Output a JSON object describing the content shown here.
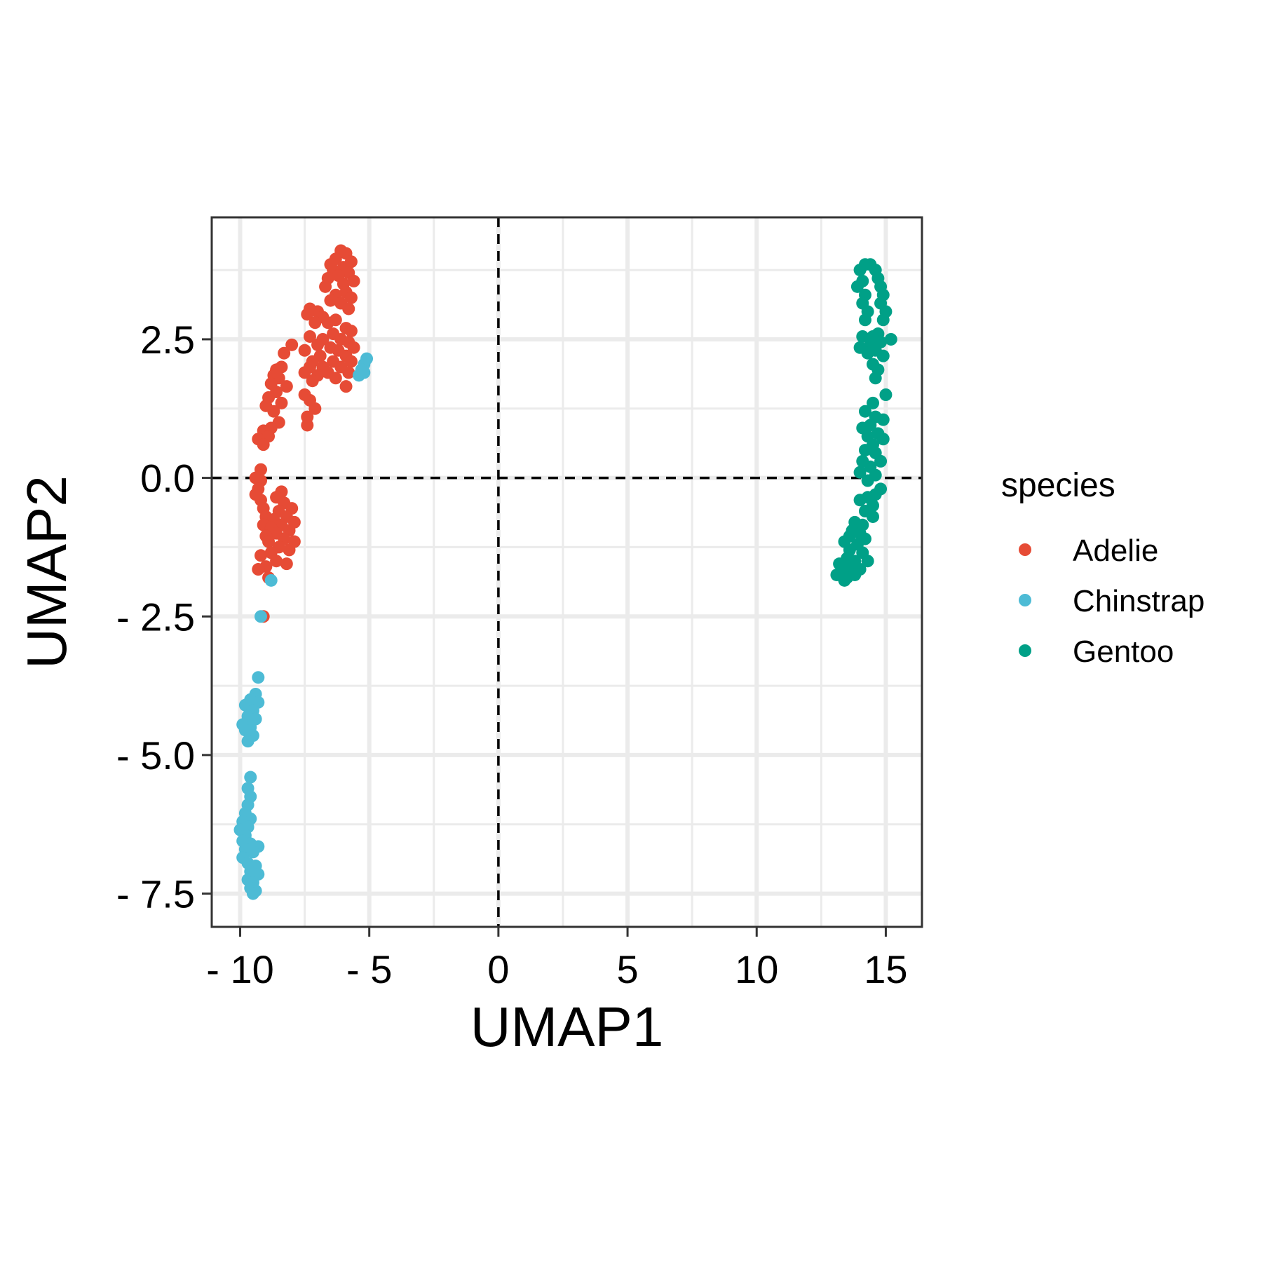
{
  "chart_data": {
    "type": "scatter",
    "xlabel": "UMAP1",
    "ylabel": "UMAP2",
    "xlim": [
      -11.1,
      16.4
    ],
    "ylim": [
      -8.1,
      4.7
    ],
    "x_ticks": [
      -10,
      -5,
      0,
      5,
      10,
      15
    ],
    "y_ticks": [
      -7.5,
      -5.0,
      -2.5,
      0.0,
      2.5
    ],
    "x_tick_labels": [
      "- 10",
      "- 5",
      "0",
      "5",
      "10",
      "15"
    ],
    "y_tick_labels": [
      "- 7.5",
      "- 5.0",
      "- 2.5",
      "0.0",
      "2.5"
    ],
    "grid": true,
    "reference_lines": {
      "x": 0,
      "y": 0,
      "style": "dashed"
    },
    "legend": {
      "title": "species",
      "position": "right"
    },
    "series": [
      {
        "name": "Adelie",
        "color": "#E64B35",
        "points": [
          [
            -6.1,
            4.1
          ],
          [
            -5.9,
            4.05
          ],
          [
            -6.3,
            3.95
          ],
          [
            -5.7,
            3.9
          ],
          [
            -6.5,
            3.85
          ],
          [
            -6.0,
            3.8
          ],
          [
            -6.4,
            3.75
          ],
          [
            -5.8,
            3.7
          ],
          [
            -6.2,
            3.65
          ],
          [
            -6.6,
            3.6
          ],
          [
            -5.6,
            3.55
          ],
          [
            -6.0,
            3.5
          ],
          [
            -6.7,
            3.45
          ],
          [
            -5.9,
            3.35
          ],
          [
            -6.3,
            3.3
          ],
          [
            -5.7,
            3.25
          ],
          [
            -6.5,
            3.2
          ],
          [
            -6.1,
            3.15
          ],
          [
            -5.8,
            3.05
          ],
          [
            -7.3,
            3.05
          ],
          [
            -7.0,
            3.0
          ],
          [
            -7.4,
            2.95
          ],
          [
            -6.8,
            2.9
          ],
          [
            -6.3,
            2.85
          ],
          [
            -7.1,
            2.8
          ],
          [
            -6.6,
            2.8
          ],
          [
            -5.9,
            2.7
          ],
          [
            -6.4,
            2.6
          ],
          [
            -5.7,
            2.65
          ],
          [
            -7.3,
            2.55
          ],
          [
            -6.8,
            2.5
          ],
          [
            -6.1,
            2.5
          ],
          [
            -5.8,
            2.45
          ],
          [
            -7.0,
            2.4
          ],
          [
            -8.0,
            2.4
          ],
          [
            -6.5,
            2.35
          ],
          [
            -5.6,
            2.35
          ],
          [
            -7.5,
            2.3
          ],
          [
            -6.2,
            2.3
          ],
          [
            -8.3,
            2.25
          ],
          [
            -6.9,
            2.2
          ],
          [
            -5.9,
            2.2
          ],
          [
            -7.2,
            2.1
          ],
          [
            -6.4,
            2.1
          ],
          [
            -5.7,
            2.1
          ],
          [
            -8.4,
            2.0
          ],
          [
            -7.3,
            2.0
          ],
          [
            -6.8,
            2.0
          ],
          [
            -6.1,
            2.0
          ],
          [
            -8.6,
            1.95
          ],
          [
            -7.5,
            1.9
          ],
          [
            -6.6,
            1.9
          ],
          [
            -5.8,
            1.9
          ],
          [
            -8.7,
            1.85
          ],
          [
            -7.0,
            1.85
          ],
          [
            -8.5,
            1.8
          ],
          [
            -6.3,
            1.8
          ],
          [
            -8.8,
            1.7
          ],
          [
            -7.2,
            1.75
          ],
          [
            -8.2,
            1.65
          ],
          [
            -5.9,
            1.65
          ],
          [
            -8.6,
            1.55
          ],
          [
            -8.9,
            1.45
          ],
          [
            -7.5,
            1.5
          ],
          [
            -7.3,
            1.4
          ],
          [
            -8.4,
            1.35
          ],
          [
            -9.0,
            1.3
          ],
          [
            -7.1,
            1.25
          ],
          [
            -8.7,
            1.2
          ],
          [
            -7.4,
            1.1
          ],
          [
            -8.5,
            1.0
          ],
          [
            -7.4,
            0.95
          ],
          [
            -8.8,
            0.9
          ],
          [
            -9.1,
            0.85
          ],
          [
            -8.9,
            0.75
          ],
          [
            -9.3,
            0.7
          ],
          [
            -9.1,
            0.6
          ],
          [
            -9.2,
            0.15
          ],
          [
            -9.4,
            0.0
          ],
          [
            -9.2,
            -0.05
          ],
          [
            -9.3,
            -0.2
          ],
          [
            -9.4,
            -0.3
          ],
          [
            -8.4,
            -0.25
          ],
          [
            -8.6,
            -0.35
          ],
          [
            -9.2,
            -0.4
          ],
          [
            -8.3,
            -0.45
          ],
          [
            -9.1,
            -0.55
          ],
          [
            -8.0,
            -0.55
          ],
          [
            -8.5,
            -0.6
          ],
          [
            -9.0,
            -0.7
          ],
          [
            -8.2,
            -0.7
          ],
          [
            -8.7,
            -0.75
          ],
          [
            -7.9,
            -0.8
          ],
          [
            -8.4,
            -0.85
          ],
          [
            -9.1,
            -0.85
          ],
          [
            -8.8,
            -0.9
          ],
          [
            -8.1,
            -0.95
          ],
          [
            -8.6,
            -1.0
          ],
          [
            -9.0,
            -1.05
          ],
          [
            -8.3,
            -1.1
          ],
          [
            -7.9,
            -1.15
          ],
          [
            -8.9,
            -1.15
          ],
          [
            -8.5,
            -1.25
          ],
          [
            -8.1,
            -1.3
          ],
          [
            -8.8,
            -1.35
          ],
          [
            -9.2,
            -1.4
          ],
          [
            -8.6,
            -1.5
          ],
          [
            -8.2,
            -1.55
          ],
          [
            -9.0,
            -1.6
          ],
          [
            -9.3,
            -1.65
          ],
          [
            -8.9,
            -1.8
          ],
          [
            -9.1,
            -2.5
          ]
        ]
      },
      {
        "name": "Chinstrap",
        "color": "#4DBBD5",
        "points": [
          [
            -5.1,
            2.15
          ],
          [
            -5.2,
            2.05
          ],
          [
            -5.3,
            1.95
          ],
          [
            -5.2,
            1.9
          ],
          [
            -5.4,
            1.85
          ],
          [
            -8.8,
            -1.85
          ],
          [
            -9.2,
            -2.5
          ],
          [
            -9.3,
            -3.6
          ],
          [
            -9.4,
            -3.9
          ],
          [
            -9.6,
            -4.0
          ],
          [
            -9.3,
            -4.05
          ],
          [
            -9.8,
            -4.1
          ],
          [
            -9.5,
            -4.2
          ],
          [
            -9.7,
            -4.3
          ],
          [
            -9.4,
            -4.35
          ],
          [
            -9.9,
            -4.45
          ],
          [
            -9.6,
            -4.5
          ],
          [
            -9.8,
            -4.55
          ],
          [
            -9.5,
            -4.65
          ],
          [
            -9.7,
            -4.75
          ],
          [
            -9.6,
            -5.4
          ],
          [
            -9.7,
            -5.6
          ],
          [
            -9.6,
            -5.75
          ],
          [
            -9.7,
            -5.9
          ],
          [
            -9.8,
            -6.05
          ],
          [
            -9.6,
            -6.15
          ],
          [
            -9.9,
            -6.2
          ],
          [
            -9.7,
            -6.3
          ],
          [
            -10.0,
            -6.35
          ],
          [
            -9.8,
            -6.45
          ],
          [
            -9.9,
            -6.55
          ],
          [
            -9.6,
            -6.6
          ],
          [
            -9.3,
            -6.65
          ],
          [
            -9.8,
            -6.7
          ],
          [
            -9.5,
            -6.75
          ],
          [
            -9.9,
            -6.85
          ],
          [
            -9.7,
            -6.95
          ],
          [
            -9.4,
            -7.0
          ],
          [
            -9.6,
            -7.1
          ],
          [
            -9.3,
            -7.15
          ],
          [
            -9.7,
            -7.25
          ],
          [
            -9.5,
            -7.3
          ],
          [
            -9.6,
            -7.4
          ],
          [
            -9.4,
            -7.45
          ],
          [
            -9.5,
            -7.5
          ]
        ]
      },
      {
        "name": "Gentoo",
        "color": "#00A087",
        "points": [
          [
            14.4,
            3.85
          ],
          [
            14.2,
            3.85
          ],
          [
            14.6,
            3.75
          ],
          [
            14.0,
            3.75
          ],
          [
            14.7,
            3.6
          ],
          [
            14.1,
            3.55
          ],
          [
            14.8,
            3.45
          ],
          [
            13.9,
            3.45
          ],
          [
            14.9,
            3.3
          ],
          [
            14.2,
            3.3
          ],
          [
            14.8,
            3.15
          ],
          [
            14.1,
            3.15
          ],
          [
            15.0,
            3.0
          ],
          [
            14.3,
            3.0
          ],
          [
            14.9,
            2.85
          ],
          [
            14.2,
            2.85
          ],
          [
            14.7,
            2.6
          ],
          [
            14.5,
            2.55
          ],
          [
            14.1,
            2.55
          ],
          [
            15.2,
            2.5
          ],
          [
            14.8,
            2.45
          ],
          [
            14.4,
            2.4
          ],
          [
            14.0,
            2.35
          ],
          [
            14.6,
            2.3
          ],
          [
            14.3,
            2.25
          ],
          [
            14.9,
            2.2
          ],
          [
            14.5,
            2.05
          ],
          [
            14.7,
            1.95
          ],
          [
            14.6,
            1.8
          ],
          [
            15.0,
            1.5
          ],
          [
            14.5,
            1.35
          ],
          [
            14.2,
            1.2
          ],
          [
            14.6,
            1.1
          ],
          [
            14.9,
            1.05
          ],
          [
            14.4,
            0.95
          ],
          [
            14.1,
            0.9
          ],
          [
            14.7,
            0.8
          ],
          [
            14.3,
            0.75
          ],
          [
            14.9,
            0.7
          ],
          [
            14.5,
            0.6
          ],
          [
            14.2,
            0.5
          ],
          [
            14.6,
            0.45
          ],
          [
            14.8,
            0.3
          ],
          [
            14.1,
            0.3
          ],
          [
            14.4,
            0.2
          ],
          [
            14.0,
            0.1
          ],
          [
            14.6,
            0.05
          ],
          [
            14.3,
            -0.05
          ],
          [
            14.8,
            -0.2
          ],
          [
            14.6,
            -0.3
          ],
          [
            14.3,
            -0.35
          ],
          [
            14.0,
            -0.4
          ],
          [
            14.5,
            -0.5
          ],
          [
            14.2,
            -0.6
          ],
          [
            14.5,
            -0.7
          ],
          [
            13.8,
            -0.8
          ],
          [
            14.1,
            -0.85
          ],
          [
            13.7,
            -0.95
          ],
          [
            14.0,
            -1.0
          ],
          [
            13.6,
            -1.05
          ],
          [
            14.2,
            -1.1
          ],
          [
            13.4,
            -1.15
          ],
          [
            13.9,
            -1.2
          ],
          [
            13.6,
            -1.3
          ],
          [
            14.1,
            -1.35
          ],
          [
            13.5,
            -1.45
          ],
          [
            13.8,
            -1.5
          ],
          [
            14.3,
            -1.5
          ],
          [
            13.2,
            -1.55
          ],
          [
            13.6,
            -1.6
          ],
          [
            14.0,
            -1.65
          ],
          [
            13.3,
            -1.7
          ],
          [
            13.8,
            -1.75
          ],
          [
            13.1,
            -1.75
          ],
          [
            13.5,
            -1.8
          ],
          [
            13.4,
            -1.85
          ]
        ]
      }
    ]
  }
}
